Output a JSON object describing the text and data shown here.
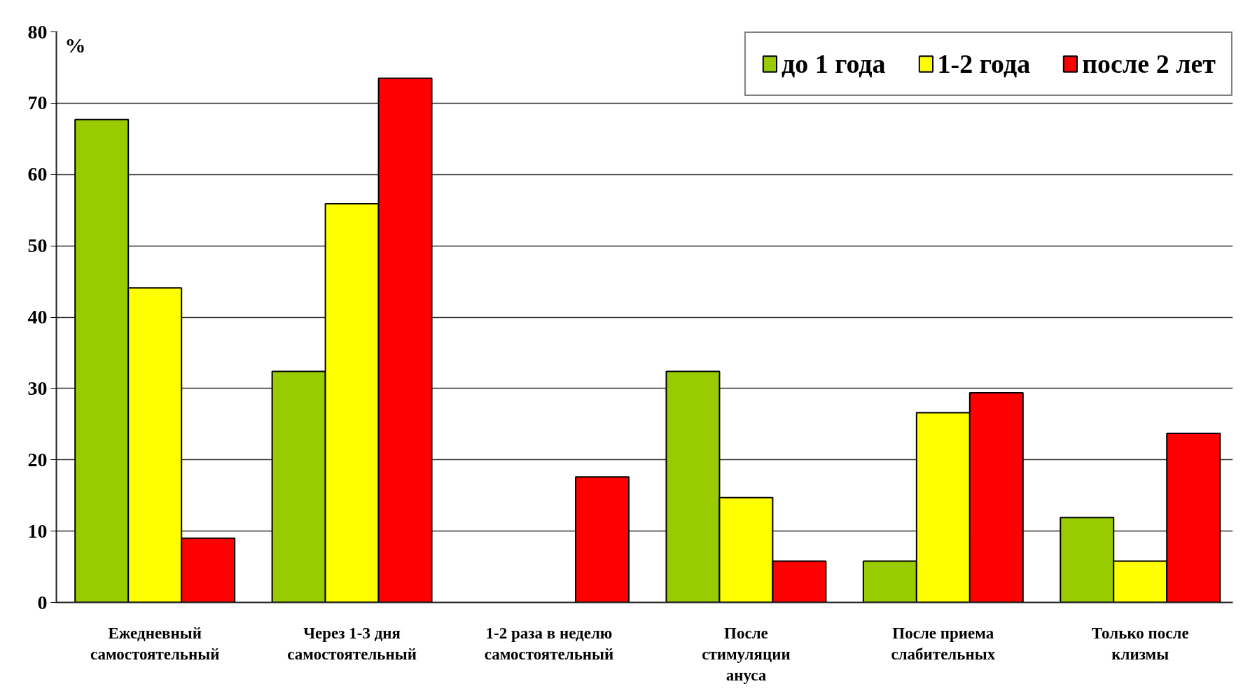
{
  "chart_data": {
    "type": "bar",
    "ylabel": "%",
    "categories": [
      "Ежедневный\nсамостоятельный",
      "Через 1-3 дня\nсамостоятельный",
      "1-2 раза в неделю\nсамостоятельный",
      "После\nстимуляции\nануса",
      "После приема\nслабительных",
      "Только после\nклизмы"
    ],
    "series": [
      {
        "name": "до 1 года",
        "color": "#99cc00",
        "values": [
          67.7,
          32.4,
          null,
          32.4,
          5.8,
          11.9
        ]
      },
      {
        "name": "1-2 года",
        "color": "#ffff00",
        "values": [
          44.1,
          55.9,
          null,
          14.7,
          26.6,
          5.8
        ]
      },
      {
        "name": "после 2 лет",
        "color": "#ff0000",
        "values": [
          9.0,
          73.5,
          17.6,
          5.8,
          29.4,
          23.7
        ]
      }
    ],
    "ylim": [
      0,
      80
    ],
    "yticks": [
      0,
      10,
      20,
      30,
      40,
      50,
      60,
      70,
      80
    ],
    "grid": "y",
    "legend": "top right"
  }
}
